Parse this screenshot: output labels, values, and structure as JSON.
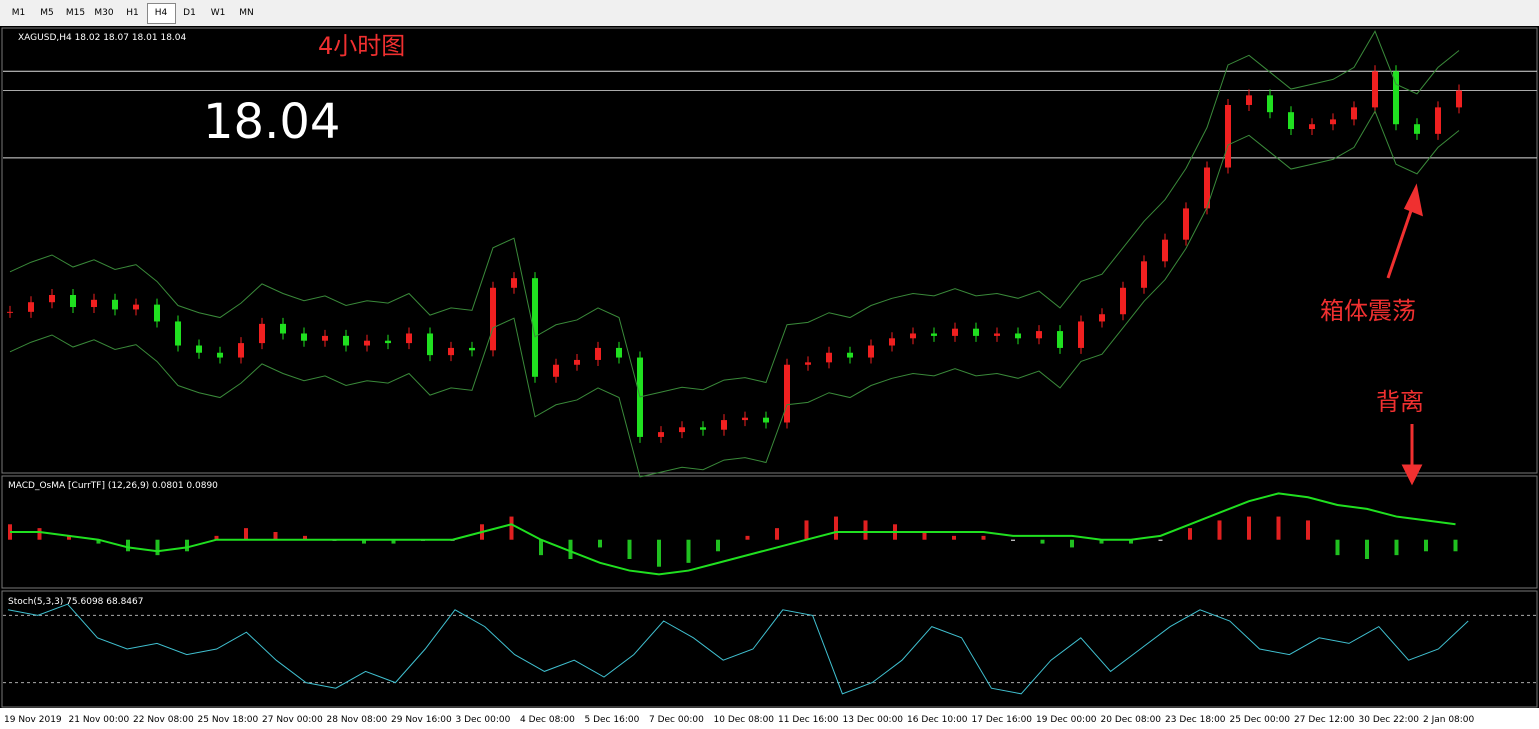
{
  "toolbar": {
    "tabs": [
      "M1",
      "M5",
      "M15",
      "M30",
      "H1",
      "H4",
      "D1",
      "W1",
      "MN"
    ],
    "active": 5
  },
  "main": {
    "symbol_line": "XAGUSD,H4  18.02 18.07 18.01 18.04",
    "caption": "4小时图",
    "price_line": 18.04,
    "levels": [
      18.12,
      17.76
    ],
    "note_box": "箱体震荡",
    "note_div": "背离",
    "ylim": [
      16.45,
      18.3
    ],
    "closes": [
      17.12,
      17.16,
      17.19,
      17.14,
      17.17,
      17.13,
      17.15,
      17.08,
      16.98,
      16.95,
      16.93,
      16.99,
      17.07,
      17.03,
      17.0,
      17.02,
      16.98,
      17.0,
      16.99,
      17.03,
      16.94,
      16.97,
      16.96,
      17.22,
      17.26,
      16.85,
      16.9,
      16.92,
      16.97,
      16.93,
      16.6,
      16.62,
      16.64,
      16.63,
      16.67,
      16.68,
      16.66,
      16.9,
      16.91,
      16.95,
      16.93,
      16.98,
      17.01,
      17.03,
      17.02,
      17.05,
      17.02,
      17.03,
      17.01,
      17.04,
      16.97,
      17.08,
      17.11,
      17.22,
      17.33,
      17.42,
      17.55,
      17.72,
      17.98,
      18.02,
      17.95,
      17.88,
      17.9,
      17.92,
      17.97,
      18.12,
      17.9,
      17.86,
      17.97,
      18.04
    ]
  },
  "macd": {
    "label": "MACD_OsMA [CurrTF] (12,26,9) 0.0801 0.0890",
    "ylim": [
      -0.12,
      0.16
    ],
    "hist": [
      0.04,
      0.03,
      0.01,
      -0.01,
      -0.03,
      -0.04,
      -0.03,
      0.01,
      0.03,
      0.02,
      0.01,
      0.0,
      -0.01,
      -0.01,
      0.0,
      0.0,
      0.04,
      0.06,
      -0.04,
      -0.05,
      -0.02,
      -0.05,
      -0.07,
      -0.06,
      -0.03,
      0.01,
      0.03,
      0.05,
      0.06,
      0.05,
      0.04,
      0.02,
      0.01,
      0.01,
      0.0,
      -0.01,
      -0.02,
      -0.01,
      -0.01,
      0.0,
      0.03,
      0.05,
      0.06,
      0.06,
      0.05,
      -0.04,
      -0.05,
      -0.04,
      -0.03,
      -0.03
    ],
    "line": [
      0.02,
      0.02,
      0.01,
      0.0,
      -0.02,
      -0.03,
      -0.02,
      0.0,
      0.0,
      0.0,
      0.0,
      0.0,
      0.0,
      0.0,
      0.0,
      0.0,
      0.02,
      0.04,
      0.0,
      -0.03,
      -0.06,
      -0.08,
      -0.09,
      -0.08,
      -0.06,
      -0.04,
      -0.02,
      0.0,
      0.02,
      0.02,
      0.02,
      0.02,
      0.02,
      0.02,
      0.01,
      0.01,
      0.01,
      0.0,
      0.0,
      0.01,
      0.04,
      0.07,
      0.1,
      0.12,
      0.11,
      0.09,
      0.08,
      0.06,
      0.05,
      0.04
    ]
  },
  "stoch": {
    "label": "Stoch(5,3,3) 75.6098 68.8467",
    "ylim": [
      0,
      100
    ],
    "levels": [
      80,
      20
    ],
    "k": [
      85,
      80,
      90,
      60,
      50,
      55,
      45,
      50,
      65,
      40,
      20,
      15,
      30,
      20,
      50,
      85,
      70,
      45,
      30,
      40,
      25,
      45,
      75,
      60,
      40,
      50,
      85,
      80,
      10,
      20,
      40,
      70,
      60,
      15,
      10,
      40,
      60,
      30,
      50,
      70,
      85,
      75,
      50,
      45,
      60,
      55,
      70,
      40,
      50,
      75
    ]
  },
  "time_axis": [
    "19 Nov 2019",
    "21 Nov 00:00",
    "22 Nov 08:00",
    "25 Nov 18:00",
    "27 Nov 00:00",
    "28 Nov 08:00",
    "29 Nov 16:00",
    "3 Dec 00:00",
    "4 Dec 08:00",
    "5 Dec 16:00",
    "7 Dec 00:00",
    "10 Dec 08:00",
    "11 Dec 16:00",
    "13 Dec 00:00",
    "16 Dec 10:00",
    "17 Dec 16:00",
    "19 Dec 00:00",
    "20 Dec 08:00",
    "23 Dec 18:00",
    "25 Dec 00:00",
    "27 Dec 12:00",
    "30 Dec 22:00",
    "2 Jan 08:00"
  ]
}
